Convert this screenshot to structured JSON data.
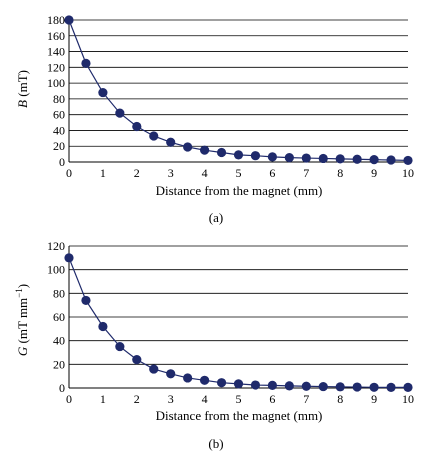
{
  "chart_data": [
    {
      "type": "line",
      "panel_label": "(a)",
      "xlabel": "Distance from the magnet (mm)",
      "ylabel_symbol": "B",
      "ylabel_unit": " (mT)",
      "xlim": [
        0,
        10
      ],
      "ylim": [
        0,
        180
      ],
      "x_ticks": [
        0,
        1,
        2,
        3,
        4,
        5,
        6,
        7,
        8,
        9,
        10
      ],
      "y_ticks": [
        0,
        20,
        40,
        60,
        80,
        100,
        120,
        140,
        160,
        180
      ],
      "grid": true,
      "x": [
        0,
        0.5,
        1,
        1.5,
        2,
        2.5,
        3,
        3.5,
        4,
        4.5,
        5,
        5.5,
        6,
        6.5,
        7,
        7.5,
        8,
        8.5,
        9,
        9.5,
        10
      ],
      "values": [
        180,
        125,
        88,
        62,
        45,
        33,
        25,
        19,
        15,
        12,
        9,
        8,
        6.5,
        5.5,
        5,
        4.5,
        4,
        3.5,
        3,
        2.5,
        2
      ],
      "marker_color": "#1f2a6b",
      "line_color": "#1f2a6b"
    },
    {
      "type": "line",
      "panel_label": "(b)",
      "xlabel": "Distance from the magnet (mm)",
      "ylabel_symbol": "G",
      "ylabel_unit": " (mT mm",
      "ylabel_sup": "−1",
      "ylabel_close": ")",
      "xlim": [
        0,
        10
      ],
      "ylim": [
        0,
        120
      ],
      "x_ticks": [
        0,
        1,
        2,
        3,
        4,
        5,
        6,
        7,
        8,
        9,
        10
      ],
      "y_ticks": [
        0,
        20,
        40,
        60,
        80,
        100,
        120
      ],
      "grid": true,
      "x": [
        0,
        0.5,
        1,
        1.5,
        2,
        2.5,
        3,
        3.5,
        4,
        4.5,
        5,
        5.5,
        6,
        6.5,
        7,
        7.5,
        8,
        8.5,
        9,
        9.5,
        10
      ],
      "values": [
        110,
        74,
        52,
        35,
        24,
        16,
        12,
        8.5,
        6.5,
        4.5,
        3.5,
        2.5,
        2.2,
        1.8,
        1.5,
        1.2,
        1,
        0.8,
        0.6,
        0.5,
        0.5
      ],
      "marker_color": "#1f2a6b",
      "line_color": "#1f2a6b"
    }
  ]
}
